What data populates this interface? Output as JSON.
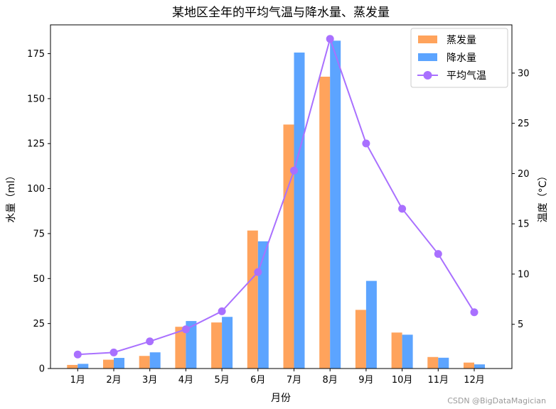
{
  "chart_data": {
    "type": "bar+line",
    "title": "某地区全年的平均气温与降水量、蒸发量",
    "xlabel": "月份",
    "ylabel_left": "水量（ml）",
    "ylabel_right": "温度（°C）",
    "categories": [
      "1月",
      "2月",
      "3月",
      "4月",
      "5月",
      "6月",
      "7月",
      "8月",
      "9月",
      "10月",
      "11月",
      "12月"
    ],
    "ylim_left": [
      0,
      191
    ],
    "ylim_right": [
      0.6,
      34.8
    ],
    "yticks_left": [
      0,
      25,
      50,
      75,
      100,
      125,
      150,
      175
    ],
    "yticks_right": [
      5,
      10,
      15,
      20,
      25,
      30
    ],
    "legend_position": "top-right",
    "series": [
      {
        "name": "蒸发量",
        "kind": "bar",
        "color": "#ffa35c",
        "values": [
          2.0,
          4.9,
          7.0,
          23.2,
          25.6,
          76.7,
          135.6,
          162.2,
          32.6,
          20.0,
          6.4,
          3.3
        ]
      },
      {
        "name": "降水量",
        "kind": "bar",
        "color": "#5ca4ff",
        "values": [
          2.6,
          5.9,
          9.0,
          26.4,
          28.7,
          70.7,
          175.6,
          182.2,
          48.7,
          18.8,
          6.0,
          2.3
        ]
      },
      {
        "name": "平均气温",
        "kind": "line",
        "axis": "right",
        "color": "#a970ff",
        "values": [
          2.0,
          2.2,
          3.3,
          4.5,
          6.3,
          10.2,
          20.3,
          33.4,
          23.0,
          16.5,
          12.0,
          6.2
        ]
      }
    ]
  },
  "watermark": "CSDN @BigDataMagician"
}
